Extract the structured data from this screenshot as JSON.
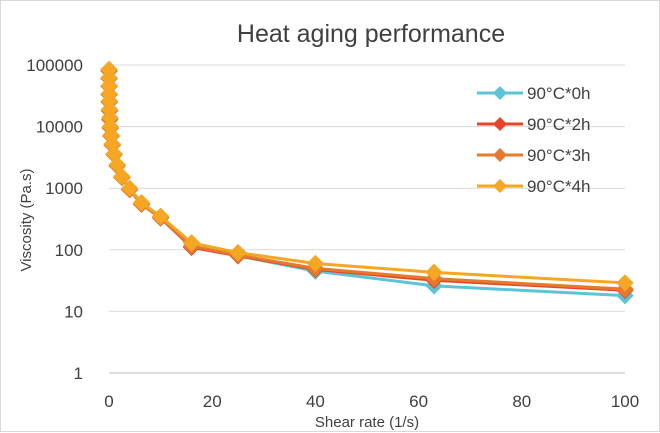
{
  "chart_data": {
    "type": "line",
    "title": "Heat aging performance",
    "xlabel": "Shear rate (1/s)",
    "ylabel": "Viscosity (Pa.s)",
    "xlim": [
      0,
      100
    ],
    "ylim": [
      1,
      100000
    ],
    "yscale": "log",
    "x_ticks": [
      "0",
      "20",
      "40",
      "60",
      "80",
      "100"
    ],
    "y_ticks": [
      "1",
      "10",
      "100",
      "1000",
      "10000",
      "100000"
    ],
    "grid": "horizontal",
    "legend_position": "right",
    "series": [
      {
        "name": "90°C*0h",
        "color": "#5bc5d6",
        "marker": "diamond",
        "points": [
          [
            0.01,
            80000
          ],
          [
            0.016,
            60000
          ],
          [
            0.025,
            45000
          ],
          [
            0.04,
            33000
          ],
          [
            0.063,
            25000
          ],
          [
            0.1,
            18000
          ],
          [
            0.16,
            13000
          ],
          [
            0.25,
            9500
          ],
          [
            0.4,
            7000
          ],
          [
            0.63,
            5000
          ],
          [
            1,
            3500
          ],
          [
            1.6,
            2300
          ],
          [
            2.5,
            1500
          ],
          [
            4,
            950
          ],
          [
            6.3,
            550
          ],
          [
            10,
            330
          ],
          [
            16,
            110
          ],
          [
            25,
            80
          ],
          [
            40,
            45
          ],
          [
            63,
            26
          ],
          [
            100,
            18
          ]
        ]
      },
      {
        "name": "90°C*2h",
        "color": "#e8442a",
        "marker": "diamond",
        "points": [
          [
            0.01,
            80000
          ],
          [
            0.016,
            60000
          ],
          [
            0.025,
            45000
          ],
          [
            0.04,
            33000
          ],
          [
            0.063,
            25000
          ],
          [
            0.1,
            18000
          ],
          [
            0.16,
            13000
          ],
          [
            0.25,
            9500
          ],
          [
            0.4,
            7000
          ],
          [
            0.63,
            5000
          ],
          [
            1,
            3500
          ],
          [
            1.6,
            2300
          ],
          [
            2.5,
            1500
          ],
          [
            4,
            950
          ],
          [
            6.3,
            550
          ],
          [
            10,
            330
          ],
          [
            16,
            110
          ],
          [
            25,
            80
          ],
          [
            40,
            48
          ],
          [
            63,
            32
          ],
          [
            100,
            22
          ]
        ]
      },
      {
        "name": "90°C*3h",
        "color": "#e47a2e",
        "marker": "diamond",
        "points": [
          [
            0.01,
            80000
          ],
          [
            0.016,
            60000
          ],
          [
            0.025,
            45000
          ],
          [
            0.04,
            33000
          ],
          [
            0.063,
            25000
          ],
          [
            0.1,
            18000
          ],
          [
            0.16,
            13000
          ],
          [
            0.25,
            9500
          ],
          [
            0.4,
            7000
          ],
          [
            0.63,
            5000
          ],
          [
            1,
            3500
          ],
          [
            1.6,
            2300
          ],
          [
            2.5,
            1500
          ],
          [
            4,
            950
          ],
          [
            6.3,
            550
          ],
          [
            10,
            330
          ],
          [
            16,
            115
          ],
          [
            25,
            82
          ],
          [
            40,
            50
          ],
          [
            63,
            34
          ],
          [
            100,
            23
          ]
        ]
      },
      {
        "name": "90°C*4h",
        "color": "#f5a623",
        "marker": "diamond",
        "points": [
          [
            0.01,
            85000
          ],
          [
            0.016,
            62000
          ],
          [
            0.025,
            46000
          ],
          [
            0.04,
            34000
          ],
          [
            0.063,
            26000
          ],
          [
            0.1,
            19000
          ],
          [
            0.16,
            14000
          ],
          [
            0.25,
            10000
          ],
          [
            0.4,
            7300
          ],
          [
            0.63,
            5200
          ],
          [
            1,
            3600
          ],
          [
            1.6,
            2400
          ],
          [
            2.5,
            1550
          ],
          [
            4,
            1000
          ],
          [
            6.3,
            580
          ],
          [
            10,
            350
          ],
          [
            16,
            130
          ],
          [
            25,
            90
          ],
          [
            40,
            60
          ],
          [
            63,
            43
          ],
          [
            100,
            29
          ]
        ]
      }
    ]
  }
}
